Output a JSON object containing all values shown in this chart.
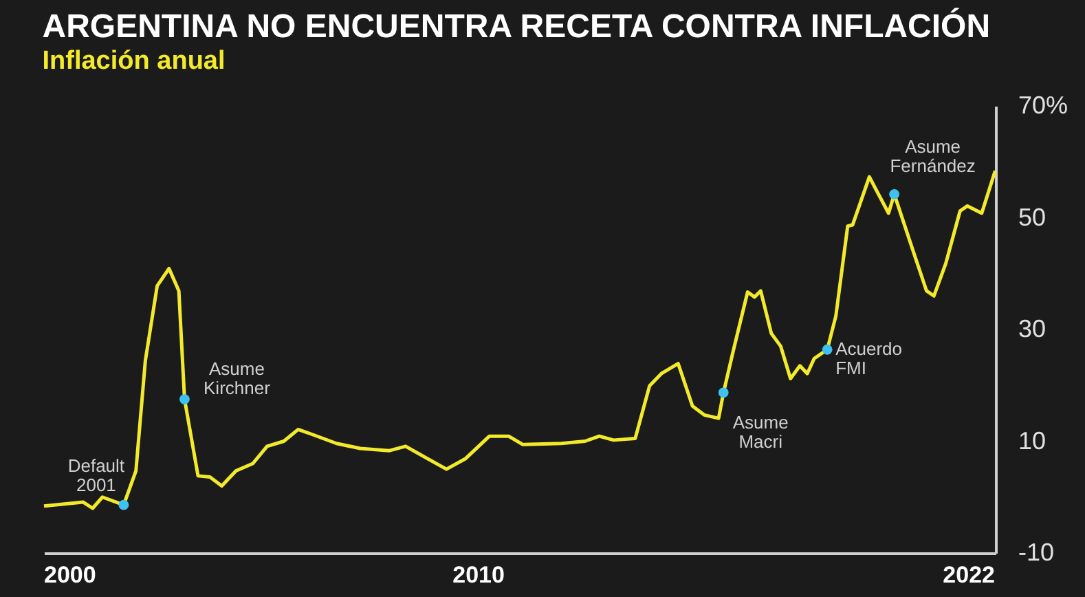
{
  "chart_data": {
    "type": "line",
    "title": "ARGENTINA NO ENCUENTRA RECETA CONTRA INFLACIÓN",
    "subtitle": "Inflación anual",
    "series": [
      {
        "color": "#f2ea2a",
        "x": [
          1999.38,
          2000.34,
          2000.57,
          2000.81,
          2001.33,
          2001.63,
          2001.86,
          2002.15,
          2002.44,
          2002.68,
          2002.82,
          2003.15,
          2003.44,
          2003.73,
          2004.08,
          2004.49,
          2004.84,
          2005.25,
          2005.6,
          2005.95,
          2006.54,
          2007.12,
          2007.82,
          2008.23,
          2008.76,
          2009.23,
          2009.7,
          2010.28,
          2010.75,
          2011.1,
          2012.04,
          2012.62,
          2012.97,
          2013.32,
          2013.85,
          2014.2,
          2014.49,
          2014.9,
          2015.25,
          2015.54,
          2015.89,
          2016.01,
          2016.25,
          2016.6,
          2016.77,
          2016.92,
          2017.18,
          2017.41,
          2017.65,
          2017.88,
          2018.06,
          2018.23,
          2018.55,
          2018.76,
          2019.05,
          2019.17,
          2019.58,
          2019.81,
          2020.05,
          2020.19,
          2020.69,
          2020.98,
          2021.16,
          2021.45,
          2021.8,
          2021.98,
          2022.33,
          2022.66
        ],
        "values": [
          -1.6,
          -0.9,
          -2.0,
          0.0,
          -1.4,
          4.7,
          24.4,
          37.8,
          40.9,
          36.9,
          17.5,
          3.8,
          3.6,
          2.0,
          4.7,
          6.0,
          9.1,
          10.0,
          12.1,
          11.2,
          9.6,
          8.7,
          8.3,
          9.1,
          6.9,
          5.0,
          6.9,
          10.9,
          10.9,
          9.4,
          9.6,
          10.0,
          10.9,
          10.2,
          10.5,
          19.9,
          22.1,
          23.9,
          16.3,
          14.7,
          14.1,
          18.7,
          26.2,
          36.7,
          35.8,
          36.9,
          29.3,
          27.0,
          21.2,
          23.5,
          22.1,
          24.8,
          26.4,
          32.4,
          48.5,
          48.7,
          57.3,
          54.1,
          50.8,
          54.2,
          43.2,
          36.9,
          36.0,
          41.8,
          51.2,
          52.1,
          50.8,
          58.4
        ]
      }
    ],
    "annotations": [
      {
        "text": "Default 2001",
        "x": 2001.33,
        "y": -1.4
      },
      {
        "text": "Asume Kirchner",
        "x": 2002.82,
        "y": 17.5
      },
      {
        "text": "Asume Macri",
        "x": 2016.01,
        "y": 18.7
      },
      {
        "text": "Acuerdo FMI",
        "x": 2018.55,
        "y": 26.4
      },
      {
        "text": "Asume Fernández",
        "x": 2020.19,
        "y": 54.2
      }
    ],
    "xlim": [
      1999.38,
      2022.67
    ],
    "xticks": [
      2000,
      2010,
      2022
    ],
    "ylim": [
      -10,
      70
    ],
    "yticks": [
      -10,
      10,
      30,
      50,
      {
        "value": 70,
        "label": "70%"
      }
    ],
    "grid": false,
    "marker": "none",
    "line_style": "solid"
  }
}
